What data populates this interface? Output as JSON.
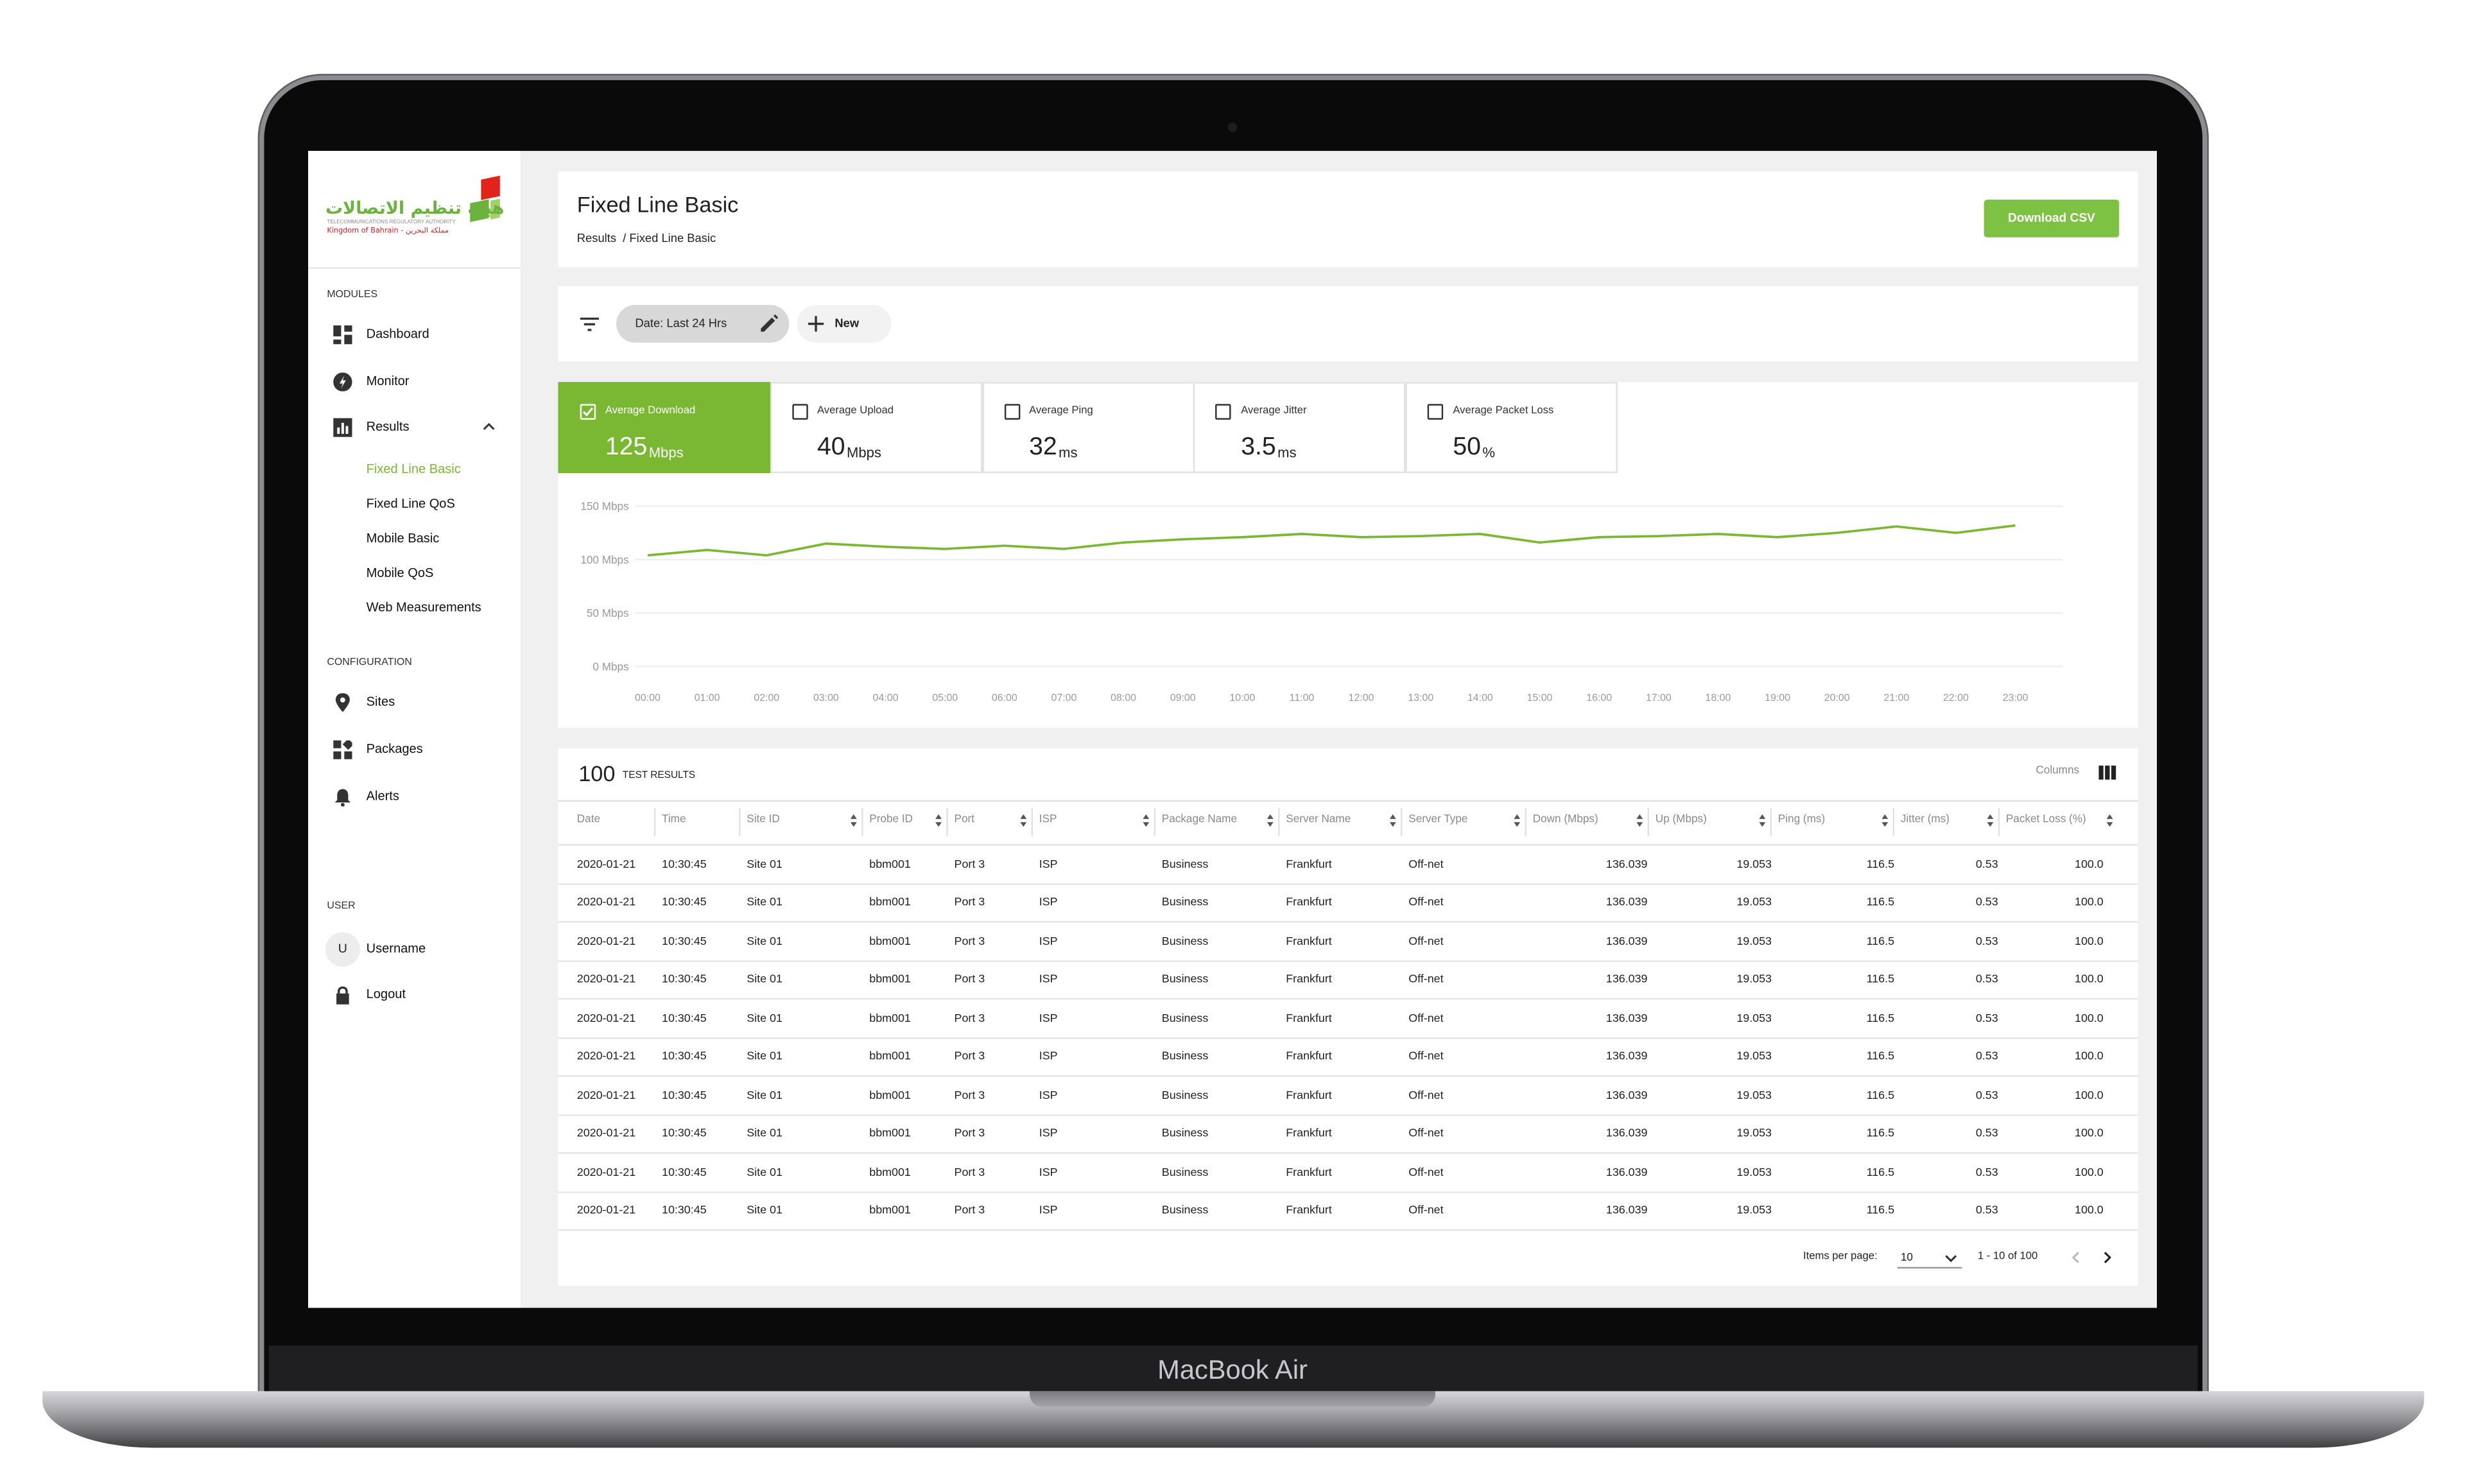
{
  "device": {
    "label": "MacBook Air"
  },
  "logo": {
    "arabic": "هيئة تنظيم الاتصالات",
    "english": "TELECOMMUNICATIONS REGULATORY AUTHORITY",
    "country": "Kingdom of Bahrain - مملكة البحرين"
  },
  "sidebar": {
    "modules_title": "MODULES",
    "modules": [
      "Dashboard",
      "Monitor",
      "Results"
    ],
    "results_items": [
      "Fixed Line Basic",
      "Fixed Line QoS",
      "Mobile Basic",
      "Mobile QoS",
      "Web Measurements"
    ],
    "config_title": "CONFIGURATION",
    "config": [
      "Sites",
      "Packages",
      "Alerts"
    ],
    "user_title": "USER",
    "avatar": "U",
    "username": "Username",
    "logout": "Logout"
  },
  "header": {
    "title": "Fixed Line Basic",
    "breadcrumb": "Results  / Fixed Line Basic",
    "button": "Download CSV"
  },
  "filters": {
    "date": "Date: Last 24 Hrs",
    "new": "New"
  },
  "stats": [
    {
      "label": "Average Download",
      "value": "125",
      "unit": "Mbps",
      "checked": true
    },
    {
      "label": "Average Upload",
      "value": "40",
      "unit": "Mbps",
      "checked": false
    },
    {
      "label": "Average Ping",
      "value": "32",
      "unit": "ms",
      "checked": false
    },
    {
      "label": "Average Jitter",
      "value": "3.5",
      "unit": "ms",
      "checked": false
    },
    {
      "label": "Average Packet Loss",
      "value": "50",
      "unit": "%",
      "checked": false
    }
  ],
  "chart": {
    "type": "line",
    "color": "#7ab833",
    "grid": true,
    "x": [
      "00:00",
      "01:00",
      "02:00",
      "03:00",
      "04:00",
      "05:00",
      "06:00",
      "07:00",
      "08:00",
      "09:00",
      "10:00",
      "11:00",
      "12:00",
      "13:00",
      "14:00",
      "15:00",
      "16:00",
      "17:00",
      "18:00",
      "19:00",
      "20:00",
      "21:00",
      "22:00",
      "23:00"
    ],
    "values": [
      104,
      109,
      104,
      115,
      112,
      110,
      113,
      110,
      116,
      119,
      121,
      124,
      121,
      122,
      124,
      116,
      121,
      122,
      124,
      121,
      125,
      131,
      125,
      132
    ],
    "ylim": [
      0,
      150
    ],
    "yticks": [
      {
        "value": 0,
        "label": "0 Mbps"
      },
      {
        "value": 50,
        "label": "50 Mbps"
      },
      {
        "value": 100,
        "label": "100 Mbps"
      },
      {
        "value": 150,
        "label": "150 Mbps"
      }
    ]
  },
  "table": {
    "count": "100",
    "count_label": "TEST RESULTS",
    "columns_label": "Columns",
    "headers": [
      "Date",
      "Time",
      "Site ID",
      "Probe ID",
      "Port",
      "ISP",
      "Package Name",
      "Server Name",
      "Server Type",
      "Down (Mbps)",
      "Up (Mbps)",
      "Ping (ms)",
      "Jitter (ms)",
      "Packet Loss (%)"
    ],
    "rows": [
      [
        "2020-01-21",
        "10:30:45",
        "Site 01",
        "bbm001",
        "Port 3",
        "ISP",
        "Business",
        "Frankfurt",
        "Off-net",
        "136.039",
        "19.053",
        "116.5",
        "0.53",
        "100.0"
      ],
      [
        "2020-01-21",
        "10:30:45",
        "Site 01",
        "bbm001",
        "Port 3",
        "ISP",
        "Business",
        "Frankfurt",
        "Off-net",
        "136.039",
        "19.053",
        "116.5",
        "0.53",
        "100.0"
      ],
      [
        "2020-01-21",
        "10:30:45",
        "Site 01",
        "bbm001",
        "Port 3",
        "ISP",
        "Business",
        "Frankfurt",
        "Off-net",
        "136.039",
        "19.053",
        "116.5",
        "0.53",
        "100.0"
      ],
      [
        "2020-01-21",
        "10:30:45",
        "Site 01",
        "bbm001",
        "Port 3",
        "ISP",
        "Business",
        "Frankfurt",
        "Off-net",
        "136.039",
        "19.053",
        "116.5",
        "0.53",
        "100.0"
      ],
      [
        "2020-01-21",
        "10:30:45",
        "Site 01",
        "bbm001",
        "Port 3",
        "ISP",
        "Business",
        "Frankfurt",
        "Off-net",
        "136.039",
        "19.053",
        "116.5",
        "0.53",
        "100.0"
      ],
      [
        "2020-01-21",
        "10:30:45",
        "Site 01",
        "bbm001",
        "Port 3",
        "ISP",
        "Business",
        "Frankfurt",
        "Off-net",
        "136.039",
        "19.053",
        "116.5",
        "0.53",
        "100.0"
      ],
      [
        "2020-01-21",
        "10:30:45",
        "Site 01",
        "bbm001",
        "Port 3",
        "ISP",
        "Business",
        "Frankfurt",
        "Off-net",
        "136.039",
        "19.053",
        "116.5",
        "0.53",
        "100.0"
      ],
      [
        "2020-01-21",
        "10:30:45",
        "Site 01",
        "bbm001",
        "Port 3",
        "ISP",
        "Business",
        "Frankfurt",
        "Off-net",
        "136.039",
        "19.053",
        "116.5",
        "0.53",
        "100.0"
      ],
      [
        "2020-01-21",
        "10:30:45",
        "Site 01",
        "bbm001",
        "Port 3",
        "ISP",
        "Business",
        "Frankfurt",
        "Off-net",
        "136.039",
        "19.053",
        "116.5",
        "0.53",
        "100.0"
      ],
      [
        "2020-01-21",
        "10:30:45",
        "Site 01",
        "bbm001",
        "Port 3",
        "ISP",
        "Business",
        "Frankfurt",
        "Off-net",
        "136.039",
        "19.053",
        "116.5",
        "0.53",
        "100.0"
      ]
    ]
  },
  "pagination": {
    "label": "Items per page:",
    "size": "10",
    "range": "1 - 10 of 100"
  }
}
